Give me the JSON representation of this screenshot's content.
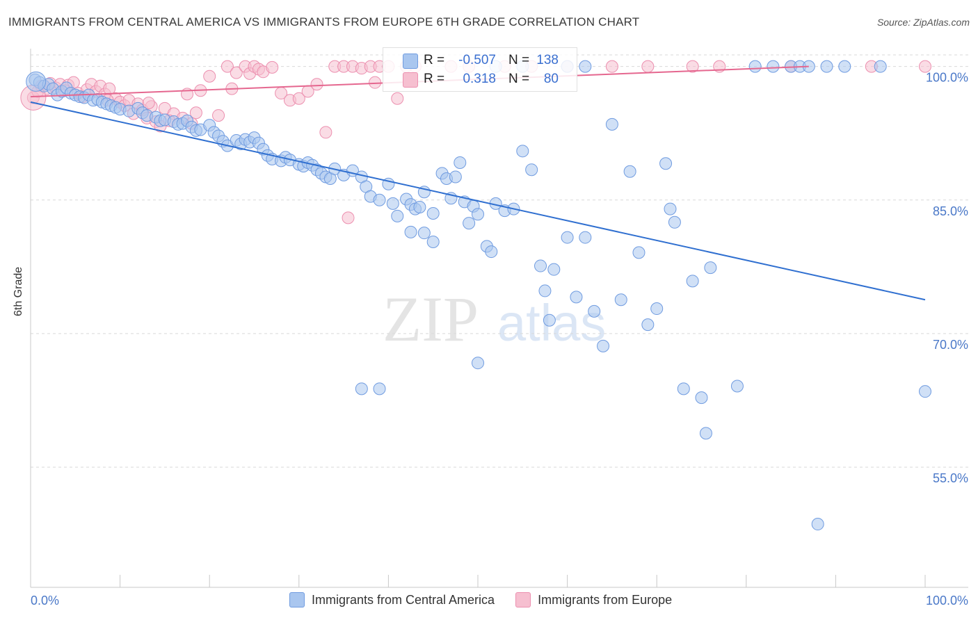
{
  "title": "IMMIGRANTS FROM CENTRAL AMERICA VS IMMIGRANTS FROM EUROPE 6TH GRADE CORRELATION CHART",
  "source": "Source: ZipAtlas.com",
  "watermark": {
    "zip": "ZIP",
    "atlas": "atlas"
  },
  "stats": {
    "r_label": "R =",
    "n_label": "N =",
    "blue": {
      "r": "-0.507",
      "n": "138"
    },
    "pink": {
      "r": "0.318",
      "n": "80"
    }
  },
  "colors": {
    "blue_fill": "#a9c6ef",
    "blue_stroke": "#6f9be0",
    "blue_line": "#2f6fd0",
    "pink_fill": "#f6bfd0",
    "pink_stroke": "#ec8faf",
    "pink_line": "#e5678f",
    "tick_label": "#4a78c8",
    "grid": "#d9d9d9"
  },
  "chart_data": {
    "type": "scatter",
    "title": "IMMIGRANTS FROM CENTRAL AMERICA VS IMMIGRANTS FROM EUROPE 6TH GRADE CORRELATION CHART",
    "xlabel": "",
    "ylabel": "6th Grade",
    "xlim": [
      0,
      100
    ],
    "ylim": [
      41.5,
      102
    ],
    "x_tick_labels": [
      "0.0%",
      "100.0%"
    ],
    "y_ticks": [
      55,
      70,
      85,
      100
    ],
    "y_tick_labels": [
      "55.0%",
      "70.0%",
      "85.0%",
      "100.0%"
    ],
    "grid": "horizontal dashed",
    "legend": "bottom",
    "series": [
      {
        "name": "Immigrants from Central America",
        "color": "#a9c6ef",
        "trend": {
          "x": [
            0,
            100
          ],
          "y": [
            96.0,
            73.8
          ]
        },
        "points": [
          [
            0.5,
            98.5
          ],
          [
            1,
            98.2
          ],
          [
            1.5,
            97.8
          ],
          [
            2,
            98.0
          ],
          [
            2.5,
            97.5
          ],
          [
            3,
            96.8
          ],
          [
            3.5,
            97.2
          ],
          [
            4,
            97.6
          ],
          [
            4.5,
            97.0
          ],
          [
            5,
            96.8
          ],
          [
            5.5,
            96.6
          ],
          [
            6,
            96.5
          ],
          [
            6.5,
            96.8
          ],
          [
            7,
            96.2
          ],
          [
            7.5,
            96.3
          ],
          [
            8,
            96.0
          ],
          [
            8.5,
            95.8
          ],
          [
            9,
            95.6
          ],
          [
            9.5,
            95.4
          ],
          [
            10,
            95.2
          ],
          [
            11,
            95.0
          ],
          [
            12,
            95.3
          ],
          [
            12.5,
            94.8
          ],
          [
            13,
            94.5
          ],
          [
            14,
            94.3
          ],
          [
            14.5,
            93.9
          ],
          [
            15,
            94.0
          ],
          [
            16,
            93.8
          ],
          [
            16.5,
            93.5
          ],
          [
            17,
            93.6
          ],
          [
            17.5,
            93.9
          ],
          [
            18,
            93.2
          ],
          [
            18.5,
            92.8
          ],
          [
            19,
            92.9
          ],
          [
            20,
            93.4
          ],
          [
            20.5,
            92.6
          ],
          [
            21,
            92.2
          ],
          [
            21.5,
            91.6
          ],
          [
            22,
            91.1
          ],
          [
            23,
            91.7
          ],
          [
            23.5,
            91.3
          ],
          [
            24,
            91.8
          ],
          [
            24.5,
            91.5
          ],
          [
            25,
            92.0
          ],
          [
            25.5,
            91.4
          ],
          [
            26,
            90.7
          ],
          [
            26.5,
            90.0
          ],
          [
            27,
            89.6
          ],
          [
            28,
            89.4
          ],
          [
            28.5,
            89.8
          ],
          [
            29,
            89.5
          ],
          [
            30,
            89.0
          ],
          [
            30.5,
            88.8
          ],
          [
            31,
            89.2
          ],
          [
            31.5,
            88.9
          ],
          [
            32,
            88.4
          ],
          [
            32.5,
            88.0
          ],
          [
            33,
            87.6
          ],
          [
            33.5,
            87.4
          ],
          [
            34,
            88.5
          ],
          [
            35,
            87.8
          ],
          [
            36,
            88.3
          ],
          [
            37,
            87.6
          ],
          [
            37.5,
            86.5
          ],
          [
            38,
            85.4
          ],
          [
            39,
            85.0
          ],
          [
            40,
            86.8
          ],
          [
            40.5,
            84.6
          ],
          [
            41,
            83.2
          ],
          [
            42,
            85.1
          ],
          [
            42.5,
            84.5
          ],
          [
            43,
            84.0
          ],
          [
            43.5,
            84.2
          ],
          [
            44,
            85.9
          ],
          [
            45,
            83.5
          ],
          [
            46,
            88.0
          ],
          [
            46.5,
            87.4
          ],
          [
            47,
            85.2
          ],
          [
            47.5,
            87.6
          ],
          [
            48,
            89.2
          ],
          [
            48.5,
            84.8
          ],
          [
            49,
            82.4
          ],
          [
            49.5,
            84.3
          ],
          [
            50,
            83.4
          ],
          [
            51,
            79.8
          ],
          [
            51.5,
            79.2
          ],
          [
            52,
            84.6
          ],
          [
            53,
            83.8
          ],
          [
            54,
            84.0
          ],
          [
            55,
            90.5
          ],
          [
            56,
            88.4
          ],
          [
            57,
            77.6
          ],
          [
            57.5,
            74.8
          ],
          [
            58,
            71.5
          ],
          [
            58.5,
            77.2
          ],
          [
            60,
            80.8
          ],
          [
            61,
            74.1
          ],
          [
            62,
            80.8
          ],
          [
            63,
            72.5
          ],
          [
            64,
            68.6
          ],
          [
            65,
            93.5
          ],
          [
            66,
            73.8
          ],
          [
            67,
            88.2
          ],
          [
            68,
            79.1
          ],
          [
            69,
            71.0
          ],
          [
            70,
            72.8
          ],
          [
            71,
            89.1
          ],
          [
            71.5,
            84.0
          ],
          [
            72,
            82.5
          ],
          [
            73,
            63.8
          ],
          [
            74,
            75.9
          ],
          [
            75,
            62.8
          ],
          [
            75.5,
            58.8
          ],
          [
            76,
            77.4
          ],
          [
            79,
            64.1
          ],
          [
            81,
            100
          ],
          [
            83,
            100
          ],
          [
            85,
            100
          ],
          [
            86,
            100
          ],
          [
            87,
            100
          ],
          [
            88,
            48.6
          ],
          [
            89,
            100
          ],
          [
            91,
            100
          ],
          [
            95,
            100
          ],
          [
            100,
            63.5
          ],
          [
            55,
            100
          ],
          [
            52,
            100
          ],
          [
            60,
            100
          ],
          [
            62,
            100
          ],
          [
            50,
            66.7
          ],
          [
            45,
            80.3
          ],
          [
            44,
            81.3
          ],
          [
            42.5,
            81.4
          ],
          [
            39,
            63.8
          ],
          [
            37,
            63.8
          ]
        ]
      },
      {
        "name": "Immigrants from Europe",
        "color": "#f6bfd0",
        "trend": {
          "x": [
            0,
            87
          ],
          "y": [
            96.6,
            100.0
          ]
        },
        "points": [
          [
            0.3,
            96.5
          ],
          [
            0.8,
            97.2
          ],
          [
            1.2,
            97.8
          ],
          [
            1.8,
            97.5
          ],
          [
            2.2,
            98.1
          ],
          [
            2.8,
            97.6
          ],
          [
            3.3,
            98.0
          ],
          [
            3.8,
            97.3
          ],
          [
            4.2,
            97.9
          ],
          [
            4.8,
            98.2
          ],
          [
            5.3,
            97.0
          ],
          [
            5.8,
            96.6
          ],
          [
            6.3,
            97.4
          ],
          [
            6.8,
            98.0
          ],
          [
            7.3,
            97.2
          ],
          [
            7.8,
            97.8
          ],
          [
            8.3,
            96.9
          ],
          [
            8.8,
            97.5
          ],
          [
            9.5,
            96.4
          ],
          [
            10,
            96.0
          ],
          [
            10.5,
            95.6
          ],
          [
            11,
            96.2
          ],
          [
            12,
            95.8
          ],
          [
            12.5,
            95.1
          ],
          [
            13,
            94.2
          ],
          [
            13.5,
            95.5
          ],
          [
            14,
            93.8
          ],
          [
            14.5,
            93.3
          ],
          [
            15,
            95.3
          ],
          [
            16,
            94.7
          ],
          [
            17,
            94.2
          ],
          [
            17.5,
            96.9
          ],
          [
            18,
            93.6
          ],
          [
            18.5,
            94.8
          ],
          [
            19,
            97.3
          ],
          [
            20,
            98.9
          ],
          [
            21,
            94.5
          ],
          [
            22,
            100
          ],
          [
            22.5,
            97.5
          ],
          [
            23,
            99.3
          ],
          [
            24,
            100
          ],
          [
            24.5,
            99.2
          ],
          [
            25,
            100
          ],
          [
            25.5,
            99.7
          ],
          [
            26,
            99.4
          ],
          [
            27,
            99.9
          ],
          [
            28,
            97.0
          ],
          [
            29,
            96.2
          ],
          [
            30,
            96.4
          ],
          [
            31,
            97.2
          ],
          [
            32,
            98.0
          ],
          [
            33,
            92.6
          ],
          [
            34,
            100
          ],
          [
            35,
            100
          ],
          [
            35.5,
            83.0
          ],
          [
            36,
            100
          ],
          [
            37,
            99.8
          ],
          [
            38,
            100
          ],
          [
            38.5,
            98.2
          ],
          [
            39,
            100
          ],
          [
            40,
            100
          ],
          [
            41,
            96.4
          ],
          [
            42,
            100
          ],
          [
            43,
            100
          ],
          [
            47,
            100
          ],
          [
            49,
            100
          ],
          [
            53,
            100
          ],
          [
            56,
            100
          ],
          [
            60,
            100
          ],
          [
            65,
            100
          ],
          [
            69,
            100
          ],
          [
            74,
            100
          ],
          [
            77,
            100
          ],
          [
            85,
            100
          ],
          [
            94,
            100
          ],
          [
            100,
            100
          ],
          [
            8.6,
            96.2
          ],
          [
            11.5,
            94.7
          ],
          [
            13.2,
            95.9
          ],
          [
            15.5,
            93.9
          ]
        ]
      }
    ]
  },
  "legend_labels": {
    "blue": "Immigrants from Central America",
    "pink": "Immigrants from Europe"
  }
}
